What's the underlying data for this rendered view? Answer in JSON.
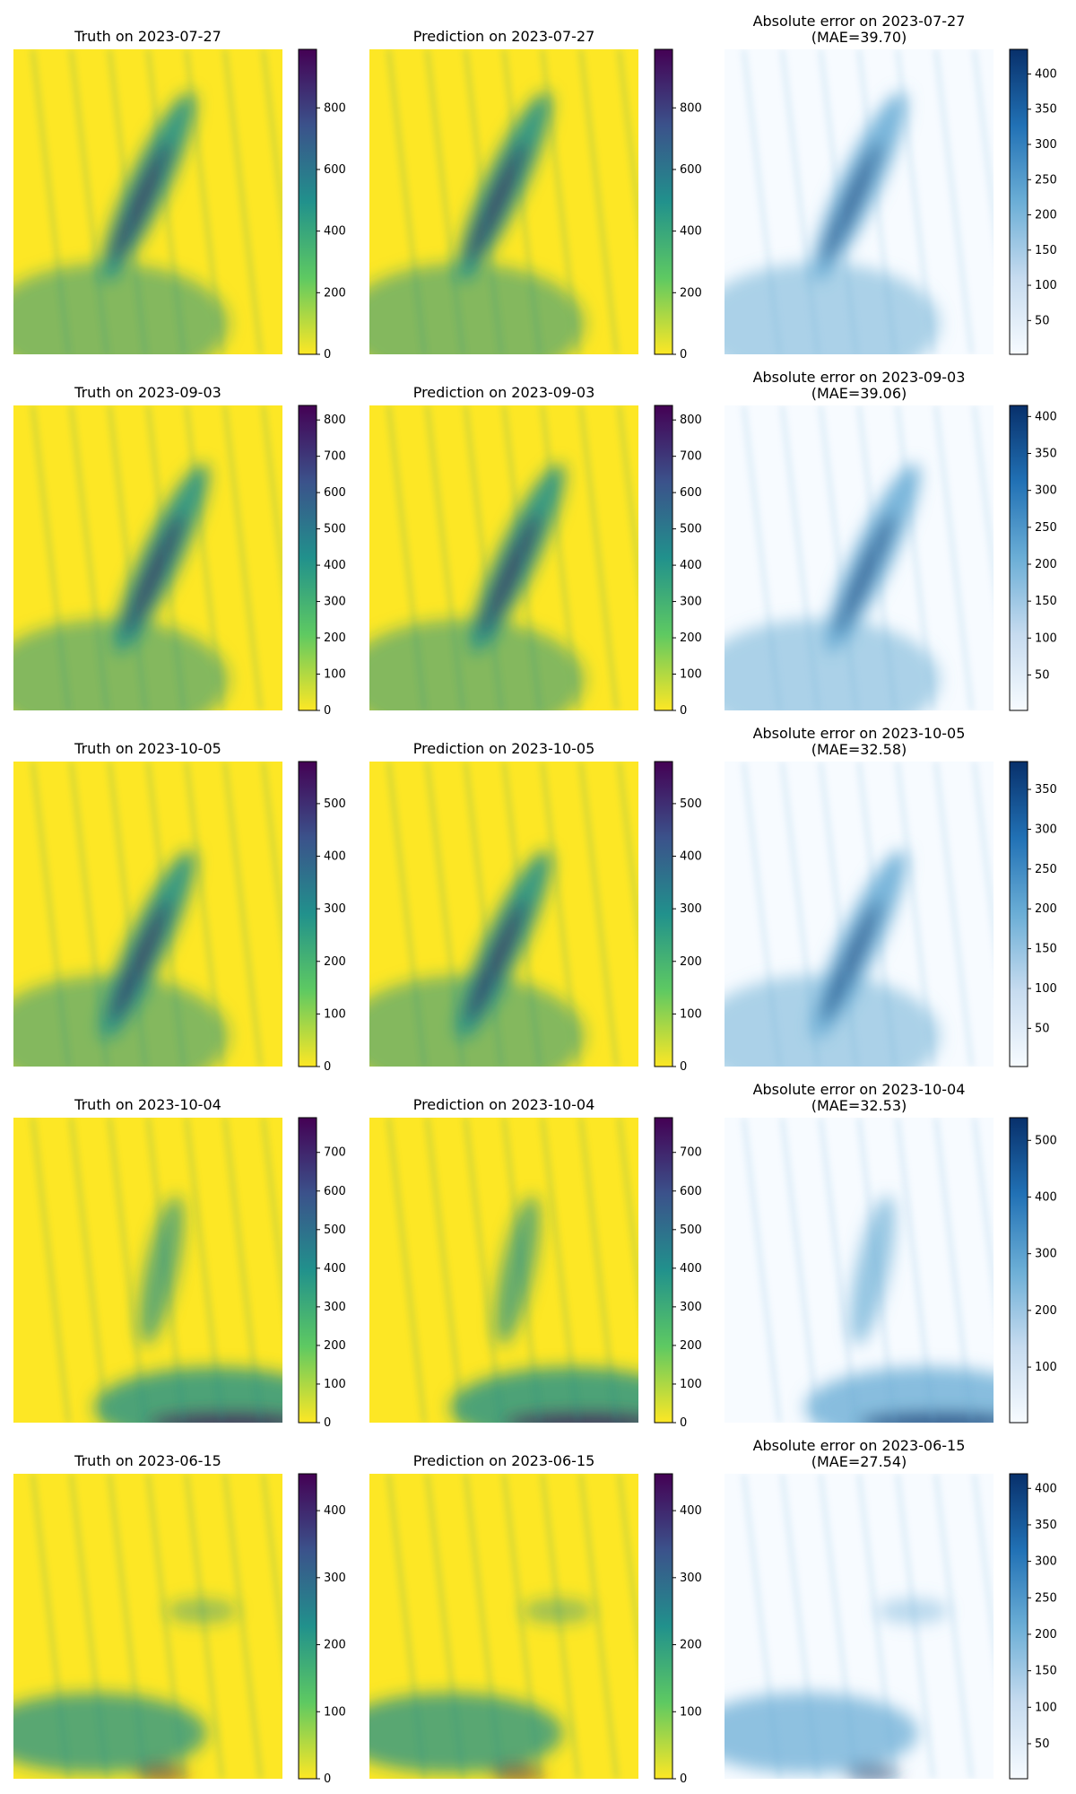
{
  "chart_data": [
    {
      "type": "heatmap",
      "title": "Truth on 2023-07-27",
      "colormap": "viridis_r",
      "colorbar_ticks": [
        "0",
        "200",
        "400",
        "600",
        "800"
      ],
      "colorbar_range": [
        0,
        990
      ],
      "feature": "band",
      "centroid_x": 0.5,
      "centroid_y": 0.45
    },
    {
      "type": "heatmap",
      "title": "Prediction on 2023-07-27",
      "colormap": "viridis_r",
      "colorbar_ticks": [
        "0",
        "200",
        "400",
        "600",
        "800"
      ],
      "colorbar_range": [
        0,
        990
      ],
      "feature": "band",
      "centroid_x": 0.5,
      "centroid_y": 0.45
    },
    {
      "type": "heatmap",
      "title": "Absolute error on 2023-07-27",
      "subtitle": "(MAE=39.70)",
      "colormap": "Blues",
      "colorbar_ticks": [
        "50",
        "100",
        "150",
        "200",
        "250",
        "300",
        "350",
        "400"
      ],
      "colorbar_range": [
        2,
        435
      ],
      "feature": "band",
      "centroid_x": 0.5,
      "centroid_y": 0.45
    },
    {
      "type": "heatmap",
      "title": "Truth on 2023-09-03",
      "colormap": "viridis_r",
      "colorbar_ticks": [
        "0",
        "100",
        "200",
        "300",
        "400",
        "500",
        "600",
        "700",
        "800"
      ],
      "colorbar_range": [
        0,
        840
      ],
      "feature": "band",
      "centroid_x": 0.55,
      "centroid_y": 0.5
    },
    {
      "type": "heatmap",
      "title": "Prediction on 2023-09-03",
      "colormap": "viridis_r",
      "colorbar_ticks": [
        "0",
        "100",
        "200",
        "300",
        "400",
        "500",
        "600",
        "700",
        "800"
      ],
      "colorbar_range": [
        0,
        840
      ],
      "feature": "band",
      "centroid_x": 0.55,
      "centroid_y": 0.5
    },
    {
      "type": "heatmap",
      "title": "Absolute error on 2023-09-03",
      "subtitle": "(MAE=39.06)",
      "colormap": "Blues",
      "colorbar_ticks": [
        "50",
        "100",
        "150",
        "200",
        "250",
        "300",
        "350",
        "400"
      ],
      "colorbar_range": [
        2,
        415
      ],
      "feature": "band",
      "centroid_x": 0.55,
      "centroid_y": 0.5
    },
    {
      "type": "heatmap",
      "title": "Truth on 2023-10-05",
      "colormap": "viridis_r",
      "colorbar_ticks": [
        "0",
        "100",
        "200",
        "300",
        "400",
        "500"
      ],
      "colorbar_range": [
        0,
        580
      ],
      "feature": "band",
      "centroid_x": 0.5,
      "centroid_y": 0.6
    },
    {
      "type": "heatmap",
      "title": "Prediction on 2023-10-05",
      "colormap": "viridis_r",
      "colorbar_ticks": [
        "0",
        "100",
        "200",
        "300",
        "400",
        "500"
      ],
      "colorbar_range": [
        0,
        580
      ],
      "feature": "band",
      "centroid_x": 0.5,
      "centroid_y": 0.6
    },
    {
      "type": "heatmap",
      "title": "Absolute error on 2023-10-05",
      "subtitle": "(MAE=32.58)",
      "colormap": "Blues",
      "colorbar_ticks": [
        "50",
        "100",
        "150",
        "200",
        "250",
        "300",
        "350"
      ],
      "colorbar_range": [
        2,
        385
      ],
      "feature": "band",
      "centroid_x": 0.5,
      "centroid_y": 0.6
    },
    {
      "type": "heatmap",
      "title": "Truth on 2023-10-04",
      "colormap": "viridis_r",
      "colorbar_ticks": [
        "0",
        "100",
        "200",
        "300",
        "400",
        "500",
        "600",
        "700"
      ],
      "colorbar_range": [
        0,
        790
      ],
      "feature": "column",
      "centroid_x": 0.55,
      "centroid_y": 0.5
    },
    {
      "type": "heatmap",
      "title": "Prediction on 2023-10-04",
      "colormap": "viridis_r",
      "colorbar_ticks": [
        "0",
        "100",
        "200",
        "300",
        "400",
        "500",
        "600",
        "700"
      ],
      "colorbar_range": [
        0,
        790
      ],
      "feature": "column",
      "centroid_x": 0.55,
      "centroid_y": 0.5
    },
    {
      "type": "heatmap",
      "title": "Absolute error on 2023-10-04",
      "subtitle": "(MAE=32.53)",
      "colormap": "Blues",
      "colorbar_ticks": [
        "100",
        "200",
        "300",
        "400",
        "500"
      ],
      "colorbar_range": [
        2,
        540
      ],
      "feature": "column",
      "centroid_x": 0.55,
      "centroid_y": 0.5
    },
    {
      "type": "heatmap",
      "title": "Truth on 2023-06-15",
      "colormap": "viridis_r",
      "colorbar_ticks": [
        "0",
        "100",
        "200",
        "300",
        "400"
      ],
      "colorbar_range": [
        0,
        455
      ],
      "feature": "scatter",
      "centroid_x": 0.4,
      "centroid_y": 0.75
    },
    {
      "type": "heatmap",
      "title": "Prediction on 2023-06-15",
      "colormap": "viridis_r",
      "colorbar_ticks": [
        "0",
        "100",
        "200",
        "300",
        "400"
      ],
      "colorbar_range": [
        0,
        455
      ],
      "feature": "scatter",
      "centroid_x": 0.4,
      "centroid_y": 0.75
    },
    {
      "type": "heatmap",
      "title": "Absolute error on 2023-06-15",
      "subtitle": "(MAE=27.54)",
      "colormap": "Blues",
      "colorbar_ticks": [
        "50",
        "100",
        "150",
        "200",
        "250",
        "300",
        "350",
        "400"
      ],
      "colorbar_range": [
        2,
        420
      ],
      "feature": "scatter",
      "centroid_x": 0.4,
      "centroid_y": 0.75
    }
  ],
  "colors": {
    "viridis_low": "#fde725",
    "viridis_mid": "#21918c",
    "viridis_high": "#440154",
    "blues_low": "#f7fbff",
    "blues_mid": "#6baed6",
    "blues_high": "#08306b",
    "axis": "#000000"
  }
}
